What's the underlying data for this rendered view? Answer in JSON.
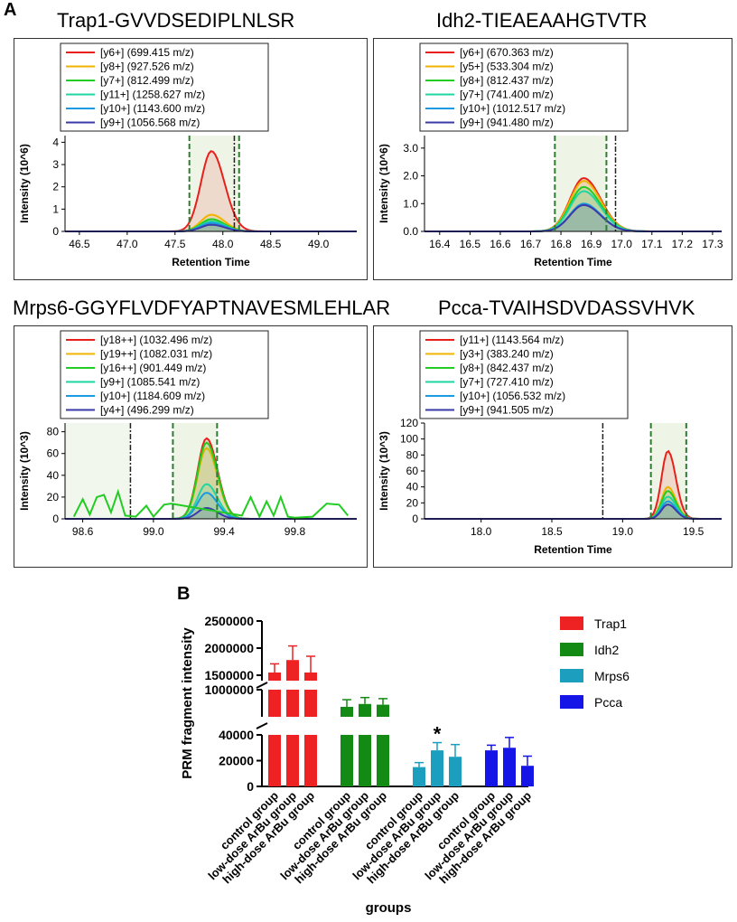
{
  "panel_a_label": "A",
  "panel_b_label": "B",
  "chart_data": [
    {
      "type": "line",
      "title": "Trap1-GVVDSEDIPLNLSR",
      "xlabel": "Retention Time",
      "ylabel": "Intensity (10^6)",
      "xlim": [
        46.35,
        49.4
      ],
      "ylim": [
        0,
        4.3
      ],
      "xticks": [
        "46.5",
        "47.0",
        "47.5",
        "48.0",
        "48.5",
        "49.0"
      ],
      "xtick_values": [
        46.5,
        47.0,
        47.5,
        48.0,
        48.5,
        49.0
      ],
      "yticks": [
        "0",
        "1",
        "2",
        "3",
        "4"
      ],
      "ytick_values": [
        0,
        1,
        2,
        3,
        4
      ],
      "shade_range": [
        47.65,
        48.17
      ],
      "green_lines": [
        47.65,
        48.17
      ],
      "black_lines": [
        48.12
      ],
      "peak_center": 47.88,
      "peak_width": 0.11,
      "legend": [
        {
          "name": "[y6+] (699.415 m/z)",
          "color": "#e8201c",
          "peak": 3.6
        },
        {
          "name": "[y8+] (927.526 m/z)",
          "color": "#f0b400",
          "peak": 0.75
        },
        {
          "name": "[y7+] (812.499 m/z)",
          "color": "#22cc22",
          "peak": 0.55
        },
        {
          "name": "[y11+] (1258.627 m/z)",
          "color": "#1ed6a0",
          "peak": 0.45
        },
        {
          "name": "[y10+] (1143.600 m/z)",
          "color": "#1a9ae0",
          "peak": 0.38
        },
        {
          "name": "[y9+] (1056.568 m/z)",
          "color": "#3a3aa8",
          "peak": 0.3
        }
      ]
    },
    {
      "type": "line",
      "title": "Idh2-TIEAEAAHGTVTR",
      "xlabel": "Retention Time",
      "ylabel": "Intensity (10^6)",
      "xlim": [
        16.35,
        17.33
      ],
      "ylim": [
        0,
        3.45
      ],
      "xticks": [
        "16.4",
        "16.5",
        "16.6",
        "16.7",
        "16.8",
        "16.9",
        "17.0",
        "17.1",
        "17.2",
        "17.3"
      ],
      "xtick_values": [
        16.4,
        16.5,
        16.6,
        16.7,
        16.8,
        16.9,
        17.0,
        17.1,
        17.2,
        17.3
      ],
      "yticks": [
        "0.0",
        "1.0",
        "2.0",
        "3.0"
      ],
      "ytick_values": [
        0,
        1,
        2,
        3
      ],
      "shade_range": [
        16.78,
        16.95
      ],
      "green_lines": [
        16.78,
        16.95
      ],
      "black_lines": [
        16.98
      ],
      "peak_center": 16.875,
      "peak_width": 0.045,
      "legend": [
        {
          "name": "[y6+] (670.363 m/z)",
          "color": "#e8201c",
          "peak": 1.92
        },
        {
          "name": "[y5+] (533.304 m/z)",
          "color": "#f0b400",
          "peak": 1.82
        },
        {
          "name": "[y8+] (812.437 m/z)",
          "color": "#22cc22",
          "peak": 1.6
        },
        {
          "name": "[y7+] (741.400 m/z)",
          "color": "#1ed6a0",
          "peak": 1.45
        },
        {
          "name": "[y10+] (1012.517 m/z)",
          "color": "#1a9ae0",
          "peak": 1.0
        },
        {
          "name": "[y9+] (941.480 m/z)",
          "color": "#3a3aa8",
          "peak": 0.95
        }
      ]
    },
    {
      "type": "line",
      "title": "Mrps6-GGYFLVDFYAPTNAVESMLEHLAR",
      "xlabel": "",
      "ylabel": "Intensity (10^3)",
      "xlim": [
        98.5,
        100.15
      ],
      "ylim": [
        0,
        88
      ],
      "xticks": [
        "98.6",
        "99.0",
        "99.4",
        "99.8"
      ],
      "xtick_values": [
        98.6,
        99.0,
        99.4,
        99.8
      ],
      "yticks": [
        "0",
        "20",
        "40",
        "60",
        "80"
      ],
      "ytick_values": [
        0,
        20,
        40,
        60,
        80
      ],
      "shade_range": [
        99.11,
        99.36
      ],
      "green_lines": [
        99.11,
        99.36
      ],
      "black_lines": [
        98.87
      ],
      "peak_center": 99.3,
      "peak_width": 0.05,
      "legend": [
        {
          "name": "[y18++] (1032.496 m/z)",
          "color": "#e8201c",
          "peak": 74
        },
        {
          "name": "[y19++] (1082.031 m/z)",
          "color": "#f0b400",
          "peak": 65
        },
        {
          "name": "[y16++] (901.449 m/z)",
          "color": "#22cc22",
          "peak": 70
        },
        {
          "name": "[y9+] (1085.541 m/z)",
          "color": "#1ed6a0",
          "peak": 32
        },
        {
          "name": "[y10+] (1184.609 m/z)",
          "color": "#1a9ae0",
          "peak": 24
        },
        {
          "name": "[y4+] (496.299 m/z)",
          "color": "#3a3aa8",
          "peak": 10
        }
      ]
    },
    {
      "type": "line",
      "title": "Pcca-TVAIHSDVDASSVHVK",
      "xlabel": "Retention Time",
      "ylabel": "Intensity (10^3)",
      "xlim": [
        17.6,
        19.7
      ],
      "ylim": [
        0,
        120
      ],
      "xticks": [
        "18.0",
        "18.5",
        "19.0",
        "19.5"
      ],
      "xtick_values": [
        18.0,
        18.5,
        19.0,
        19.5
      ],
      "yticks": [
        "0",
        "20",
        "40",
        "60",
        "80",
        "100",
        "120"
      ],
      "ytick_values": [
        0,
        20,
        40,
        60,
        80,
        100,
        120
      ],
      "shade_range": [
        19.2,
        19.45
      ],
      "green_lines": [
        19.2,
        19.45
      ],
      "black_lines": [
        18.86
      ],
      "peak_center": 19.32,
      "peak_width": 0.045,
      "legend": [
        {
          "name": "[y11+] (1143.564 m/z)",
          "color": "#e8201c",
          "peak": 85
        },
        {
          "name": "[y3+] (383.240 m/z)",
          "color": "#f0b400",
          "peak": 40
        },
        {
          "name": "[y8+] (842.437 m/z)",
          "color": "#22cc22",
          "peak": 35
        },
        {
          "name": "[y7+] (727.410 m/z)",
          "color": "#1ed6a0",
          "peak": 28
        },
        {
          "name": "[y10+] (1056.532 m/z)",
          "color": "#1a9ae0",
          "peak": 22
        },
        {
          "name": "[y9+] (941.505 m/z)",
          "color": "#3a3aa8",
          "peak": 18
        }
      ]
    },
    {
      "type": "bar",
      "title": "",
      "xlabel": "groups",
      "ylabel": "PRM fragment intensity",
      "categories": [
        "control group",
        "low-dose ArBu group",
        "high-dose ArBu group"
      ],
      "segments": [
        {
          "range": [
            1400000,
            2500000
          ],
          "ticks": [
            1500000,
            2000000,
            2500000
          ],
          "tick_labels": [
            "1500000",
            "2000000",
            "2500000"
          ]
        },
        {
          "range": [
            620000,
            1000000
          ],
          "ticks": [
            1000000
          ],
          "tick_labels": [
            "1000000"
          ]
        },
        {
          "range": [
            0,
            40000
          ],
          "ticks": [
            0,
            20000,
            40000
          ],
          "tick_labels": [
            "0",
            "20000",
            "40000"
          ]
        }
      ],
      "series": [
        {
          "name": "Trap1",
          "color": "#ee2222",
          "values": [
            1550000,
            1780000,
            1550000
          ],
          "errors": [
            160000,
            260000,
            300000
          ]
        },
        {
          "name": "Idh2",
          "color": "#138a13",
          "values": [
            760000,
            800000,
            790000
          ],
          "errors": [
            100000,
            90000,
            85000
          ]
        },
        {
          "name": "Mrps6",
          "color": "#1c9fbe",
          "values": [
            15000,
            28000,
            23000
          ],
          "errors": [
            3500,
            6000,
            9500
          ]
        },
        {
          "name": "Pcca",
          "color": "#1515e8",
          "values": [
            28000,
            30000,
            16000
          ],
          "errors": [
            4000,
            8000,
            7500
          ]
        }
      ],
      "annotations": [
        {
          "series": "Mrps6",
          "category": "low-dose ArBu group",
          "text": "*"
        }
      ],
      "legend_position": "top-right"
    }
  ]
}
